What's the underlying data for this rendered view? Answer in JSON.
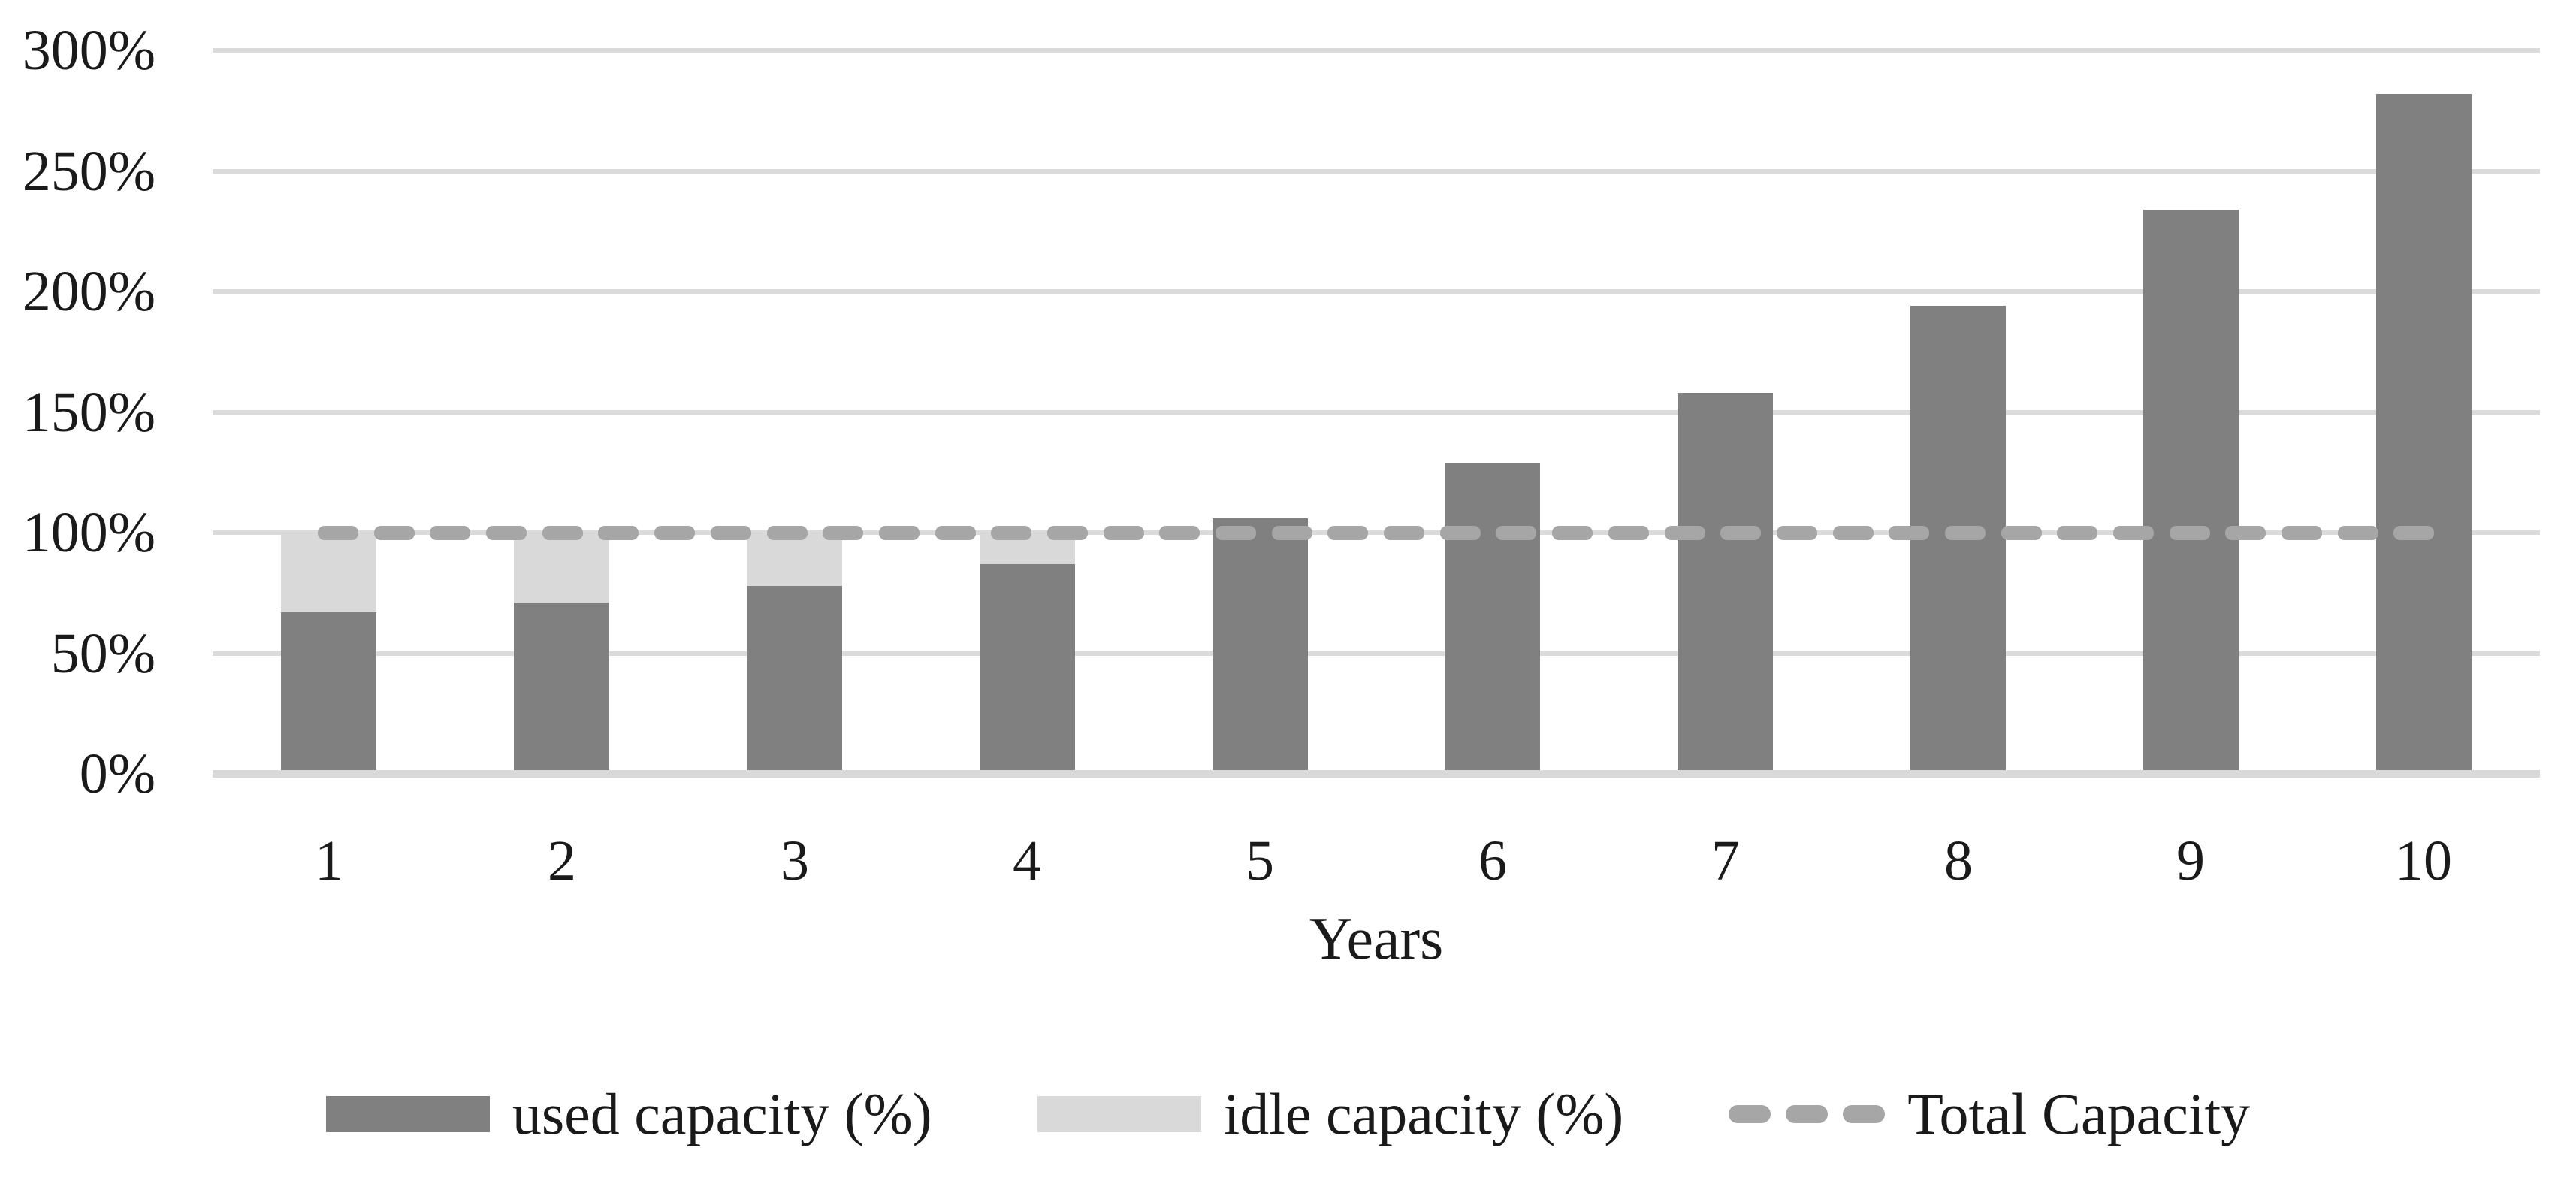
{
  "figure": {
    "background": "#ffffff",
    "text_color": "#1a1a1a",
    "gridline_color": "#dbdbdb",
    "axisline_color": "#d9d9d9"
  },
  "chart_data": {
    "type": "bar",
    "subtype": "stacked-bars-with-dashed-line-overlay",
    "title": "",
    "xlabel": "Years",
    "ylabel": "",
    "categories": [
      "1",
      "2",
      "3",
      "4",
      "5",
      "6",
      "7",
      "8",
      "9",
      "10"
    ],
    "series": [
      {
        "name": "used capacity (%)",
        "type": "bar",
        "color": "#808080",
        "values": [
          67,
          71,
          78,
          87,
          106,
          129,
          158,
          194,
          234,
          282
        ]
      },
      {
        "name": "idle capacity (%)",
        "type": "bar",
        "color": "#d9d9d9",
        "values": [
          33,
          29,
          22,
          13,
          0,
          0,
          0,
          0,
          0,
          0
        ]
      },
      {
        "name": "Total Capacity",
        "type": "dashed-line",
        "color": "#a6a6a6",
        "values": [
          100,
          100,
          100,
          100,
          100,
          100,
          100,
          100,
          100,
          100
        ]
      }
    ],
    "ylim": [
      0,
      300
    ],
    "ytick_labels": [
      "0%",
      "50%",
      "100%",
      "150%",
      "200%",
      "250%",
      "300%"
    ],
    "ytick_values": [
      0,
      50,
      100,
      150,
      200,
      250,
      300
    ],
    "grid": true,
    "legend_position": "bottom"
  }
}
